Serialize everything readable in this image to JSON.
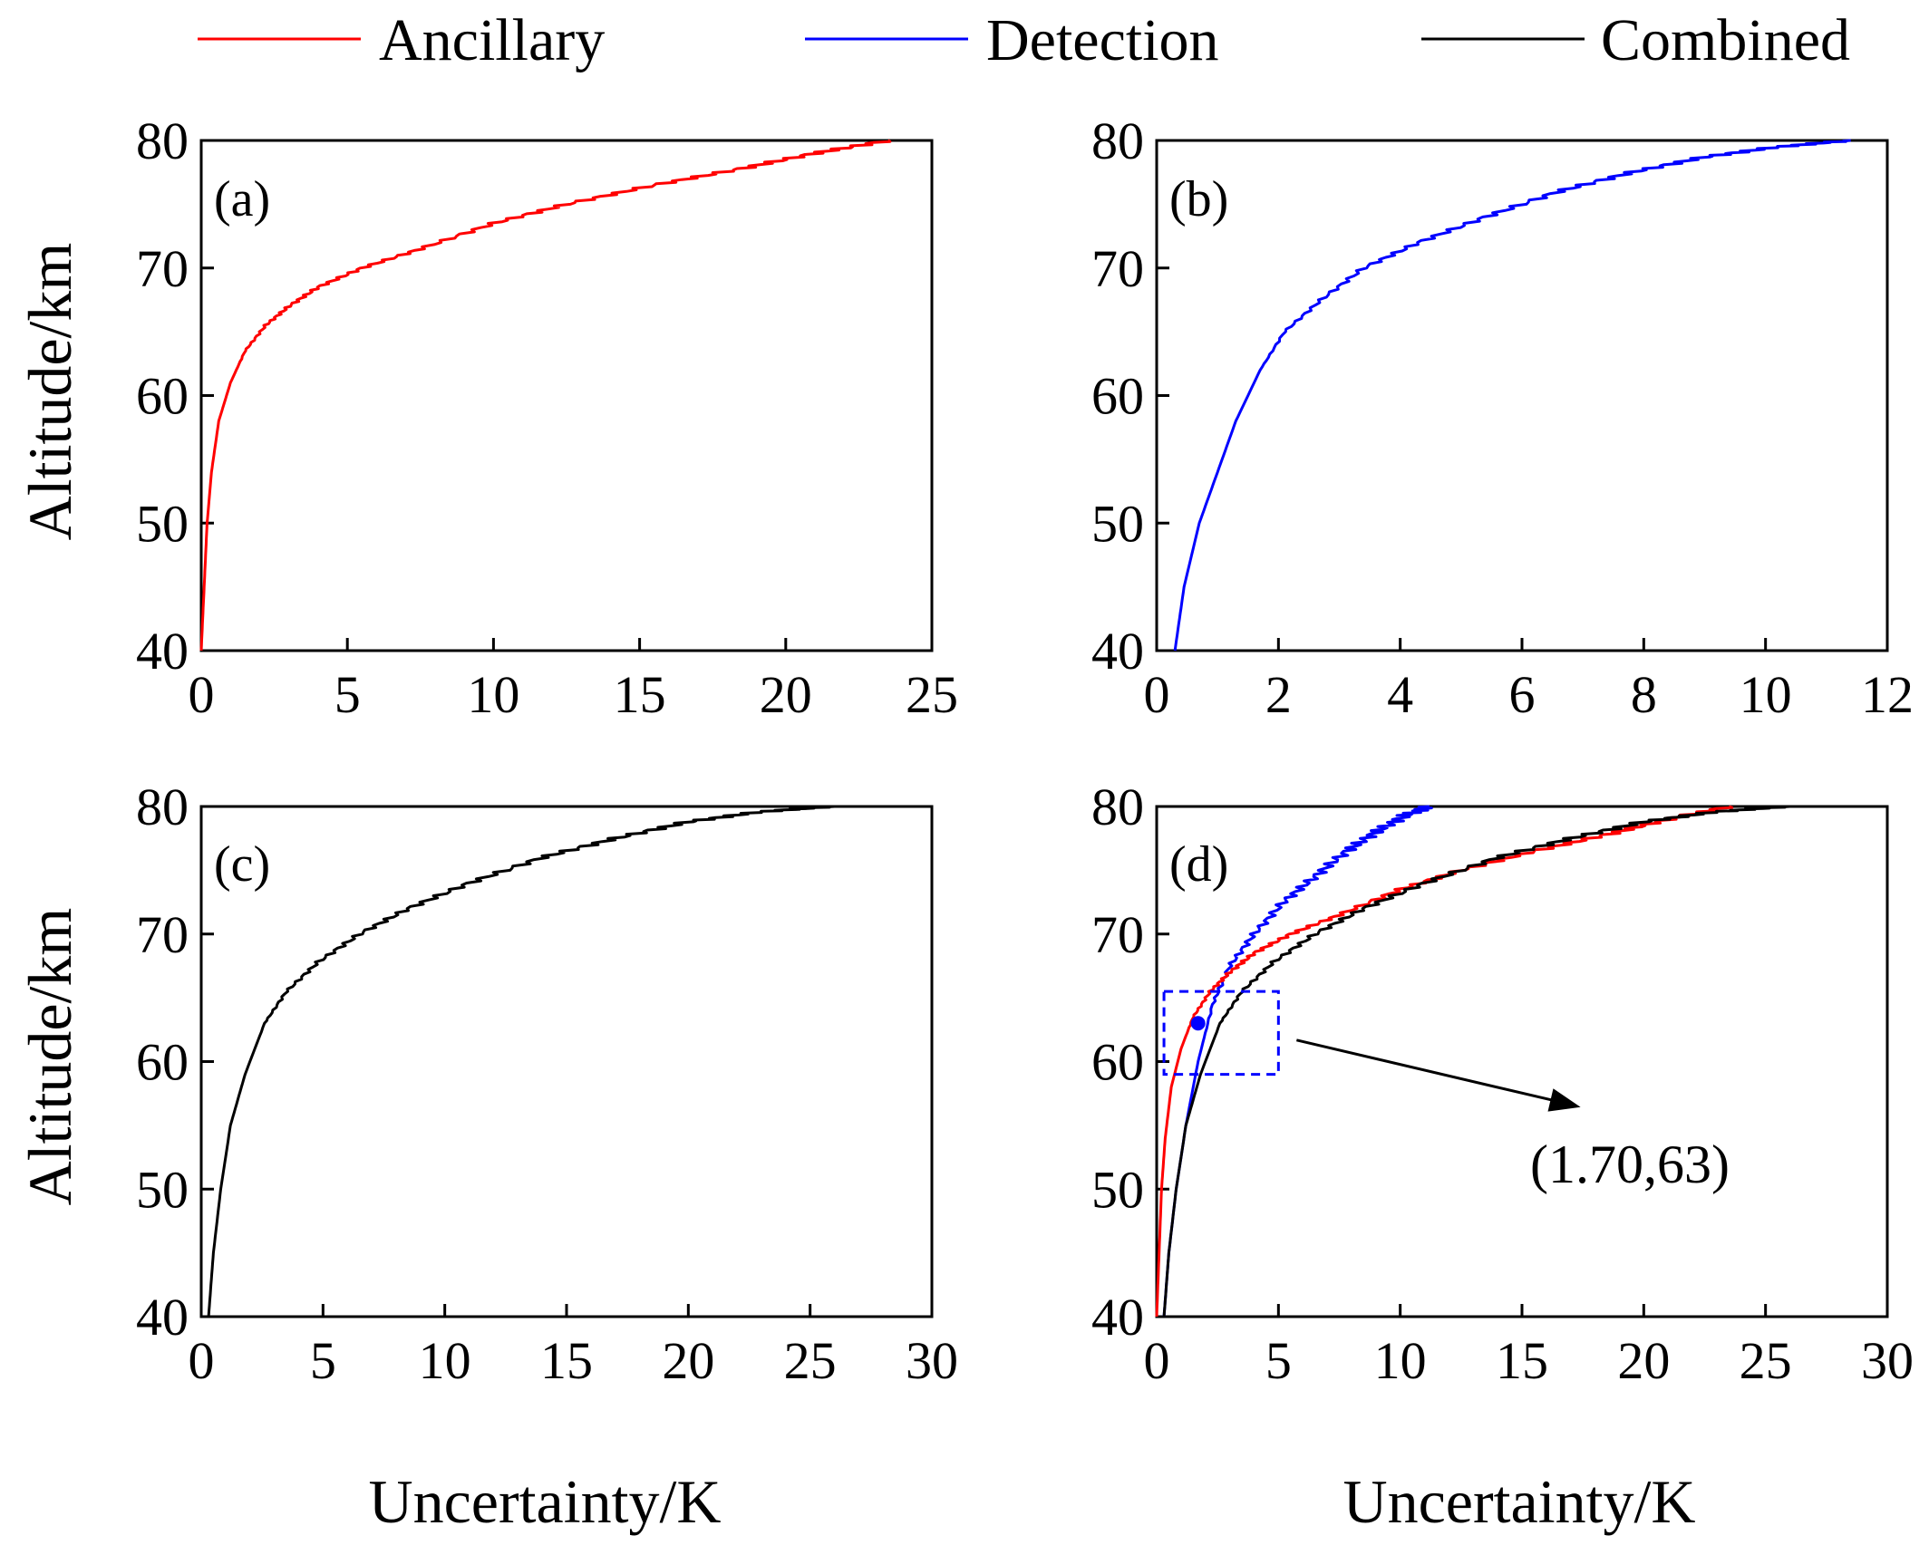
{
  "legend": [
    {
      "label": "Ancillary",
      "color": "#ff0000"
    },
    {
      "label": "Detection",
      "color": "#0000ff"
    },
    {
      "label": "Combined",
      "color": "#000000"
    }
  ],
  "chart_data": [
    {
      "type": "line",
      "panel_label": "(a)",
      "title": "",
      "xlabel": "",
      "ylabel": "Altitude/km",
      "xlim": [
        0,
        25
      ],
      "ylim": [
        40,
        80
      ],
      "xticks": [
        "0",
        "5",
        "10",
        "15",
        "20",
        "25"
      ],
      "yticks": [
        "40",
        "50",
        "60",
        "70",
        "80"
      ],
      "series": [
        {
          "name": "Ancillary",
          "color": "#ff0000",
          "x": [
            0.0,
            0.1,
            0.2,
            0.35,
            0.6,
            1.0,
            1.5,
            2.2,
            3.0,
            4.0,
            5.5,
            7.5,
            10.0,
            12.5,
            15.5,
            18.5,
            21.0,
            23.5
          ],
          "y": [
            40,
            45,
            50,
            54,
            58,
            61,
            63.5,
            65.5,
            67,
            68.5,
            70,
            71.5,
            73.5,
            75,
            76.5,
            77.8,
            79,
            80
          ]
        }
      ]
    },
    {
      "type": "line",
      "panel_label": "(b)",
      "title": "",
      "xlabel": "",
      "ylabel": "",
      "xlim": [
        0,
        12
      ],
      "ylim": [
        40,
        80
      ],
      "xticks": [
        "0",
        "2",
        "4",
        "6",
        "8",
        "10",
        "12"
      ],
      "yticks": [
        "40",
        "50",
        "60",
        "70",
        "80"
      ],
      "series": [
        {
          "name": "Detection",
          "color": "#0000ff",
          "x": [
            0.3,
            0.45,
            0.7,
            1.0,
            1.3,
            1.7,
            2.1,
            2.7,
            3.4,
            4.3,
            5.4,
            6.6,
            7.8,
            9.0,
            10.2,
            11.4
          ],
          "y": [
            40,
            45,
            50,
            54,
            58,
            62,
            65,
            67.5,
            70,
            72,
            74,
            76,
            77.5,
            78.7,
            79.5,
            80
          ]
        }
      ]
    },
    {
      "type": "line",
      "panel_label": "(c)",
      "title": "",
      "xlabel": "Uncertainty/K",
      "ylabel": "Altitude/km",
      "xlim": [
        0,
        30
      ],
      "ylim": [
        40,
        80
      ],
      "xticks": [
        "0",
        "5",
        "10",
        "15",
        "20",
        "25",
        "30"
      ],
      "yticks": [
        "40",
        "50",
        "60",
        "70",
        "80"
      ],
      "series": [
        {
          "name": "Combined",
          "color": "#000000",
          "x": [
            0.3,
            0.5,
            0.8,
            1.2,
            1.8,
            2.6,
            3.5,
            4.8,
            6.5,
            8.5,
            11.0,
            14.0,
            17.0,
            20.0,
            23.0,
            26.0
          ],
          "y": [
            40,
            45,
            50,
            55,
            59,
            63,
            65.5,
            67.8,
            70,
            72,
            74,
            76,
            77.5,
            78.8,
            79.6,
            80
          ]
        }
      ]
    },
    {
      "type": "line",
      "panel_label": "(d)",
      "title": "",
      "xlabel": "Uncertainty/K",
      "ylabel": "",
      "xlim": [
        0,
        30
      ],
      "ylim": [
        40,
        80
      ],
      "xticks": [
        "0",
        "5",
        "10",
        "15",
        "20",
        "25",
        "30"
      ],
      "yticks": [
        "40",
        "50",
        "60",
        "70",
        "80"
      ],
      "series": [
        {
          "name": "Detection",
          "color": "#0000ff",
          "x": [
            0.3,
            0.5,
            0.8,
            1.2,
            1.7,
            2.3,
            3.0,
            4.0,
            5.2,
            6.5,
            7.8,
            9.0,
            10.2,
            11.2
          ],
          "y": [
            40,
            45,
            50,
            55,
            60,
            64.5,
            67.5,
            70,
            72.5,
            74.5,
            76.5,
            78,
            79.3,
            80
          ]
        },
        {
          "name": "Ancillary",
          "color": "#ff0000",
          "x": [
            0.0,
            0.1,
            0.2,
            0.35,
            0.6,
            1.0,
            1.5,
            2.2,
            3.0,
            4.0,
            5.5,
            7.5,
            10.0,
            12.5,
            15.5,
            18.5,
            21.0,
            23.5
          ],
          "y": [
            40,
            45,
            50,
            54,
            58,
            61,
            63.5,
            65.5,
            67,
            68.5,
            70,
            71.5,
            73.5,
            75,
            76.5,
            77.8,
            79,
            80
          ]
        },
        {
          "name": "Combined",
          "color": "#000000",
          "x": [
            0.3,
            0.5,
            0.8,
            1.2,
            1.8,
            2.6,
            3.5,
            4.8,
            6.5,
            8.5,
            11.0,
            14.0,
            17.0,
            20.0,
            23.0,
            26.0
          ],
          "y": [
            40,
            45,
            50,
            55,
            59,
            63,
            65.5,
            67.8,
            70,
            72,
            74,
            76,
            77.5,
            78.8,
            79.6,
            80
          ]
        }
      ],
      "highlight_point": {
        "x": 1.7,
        "y": 63,
        "color": "#0000ff"
      },
      "highlight_box": {
        "x": [
          0.3,
          5.0
        ],
        "y": [
          59,
          65.5
        ]
      },
      "arrow_target": {
        "x": 18.0,
        "y": 57
      },
      "annotation": "(1.70,63)"
    }
  ]
}
